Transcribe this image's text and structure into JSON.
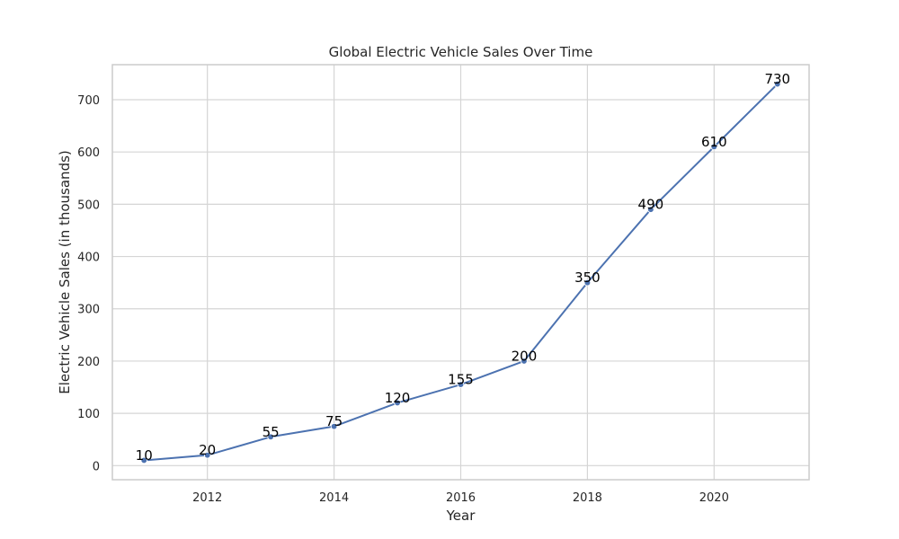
{
  "chart_data": {
    "type": "line",
    "title": "Global Electric Vehicle Sales Over Time",
    "xlabel": "Year",
    "ylabel": "Electric Vehicle Sales (in thousands)",
    "xlim": [
      2010.5,
      2021.5
    ],
    "ylim": [
      -27,
      767
    ],
    "x_ticks": [
      2012,
      2014,
      2016,
      2018,
      2020
    ],
    "y_ticks": [
      0,
      100,
      200,
      300,
      400,
      500,
      600,
      700
    ],
    "grid": true,
    "legend": "none",
    "series": [
      {
        "x": [
          2011,
          2012,
          2013,
          2014,
          2015,
          2016,
          2017,
          2018,
          2019,
          2020,
          2021
        ],
        "values": [
          10,
          20,
          55,
          75,
          120,
          155,
          200,
          350,
          490,
          610,
          730
        ],
        "color": "#4c72b0",
        "marker": "circle",
        "show_labels": true
      }
    ],
    "colors": {
      "grid": "#d5d5d5",
      "frame": "#cccccc",
      "text": "#262626",
      "label": "#000000"
    }
  }
}
